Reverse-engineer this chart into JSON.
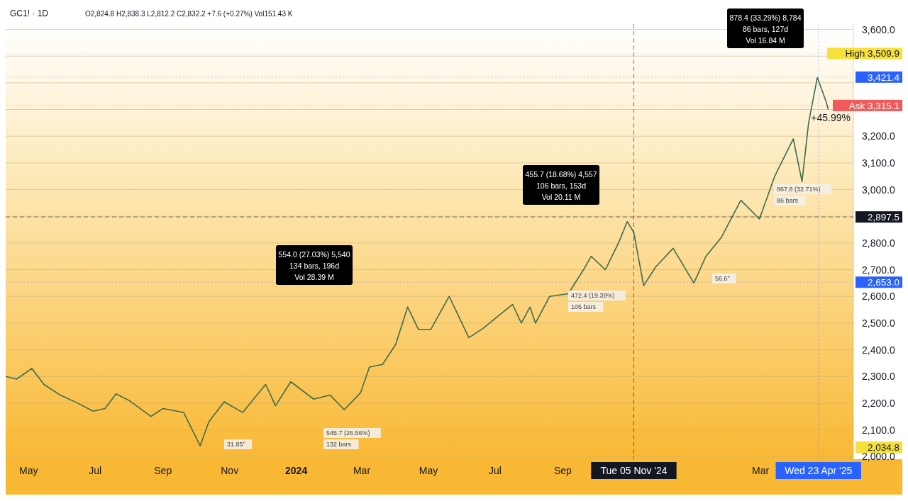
{
  "chart_data": {
    "type": "line",
    "title": "GC1! · 1D",
    "subtitle": "O2,824.8 H2,838.3 L2,812.2 C2,832.2 +7.6 (+0.27%) Vol151.43 K",
    "x": [
      "2023-04-10",
      "2023-04-20",
      "2023-05-04",
      "2023-05-15",
      "2023-05-30",
      "2023-06-15",
      "2023-06-29",
      "2023-07-10",
      "2023-07-20",
      "2023-08-01",
      "2023-08-21",
      "2023-09-01",
      "2023-09-20",
      "2023-10-05",
      "2023-10-13",
      "2023-10-27",
      "2023-11-13",
      "2023-12-04",
      "2023-12-13",
      "2023-12-27",
      "2024-01-17",
      "2024-02-01",
      "2024-02-14",
      "2024-02-29",
      "2024-03-08",
      "2024-03-20",
      "2024-04-01",
      "2024-04-12",
      "2024-04-22",
      "2024-05-03",
      "2024-05-20",
      "2024-06-07",
      "2024-06-20",
      "2024-07-05",
      "2024-07-17",
      "2024-07-25",
      "2024-08-02",
      "2024-08-07",
      "2024-08-20",
      "2024-09-06",
      "2024-09-20",
      "2024-09-27",
      "2024-10-10",
      "2024-10-22",
      "2024-10-30",
      "2024-11-05",
      "2024-11-14",
      "2024-11-25",
      "2024-12-11",
      "2024-12-30",
      "2025-01-10",
      "2025-01-24",
      "2025-02-11",
      "2025-02-28",
      "2025-03-14",
      "2025-03-31",
      "2025-04-08",
      "2025-04-14",
      "2025-04-22",
      "2025-04-30",
      "2025-05-02"
    ],
    "series": [
      {
        "color": "#3d6b4f",
        "values": [
          2300,
          2290,
          2330,
          2270,
          2230,
          2200,
          2170,
          2180,
          2235,
          2210,
          2150,
          2180,
          2165,
          2040,
          2130,
          2205,
          2165,
          2270,
          2190,
          2280,
          2215,
          2230,
          2175,
          2240,
          2335,
          2345,
          2420,
          2560,
          2475,
          2475,
          2600,
          2445,
          2480,
          2530,
          2570,
          2500,
          2560,
          2500,
          2600,
          2610,
          2700,
          2750,
          2700,
          2800,
          2880,
          2840,
          2640,
          2710,
          2780,
          2650,
          2750,
          2820,
          2960,
          2890,
          3050,
          3190,
          3030,
          3250,
          3420,
          3330,
          3300
        ]
      }
    ],
    "xlim": [
      "2023-04-10",
      "2025-05-25"
    ],
    "xticks": [
      {
        "value": "2023-05-01",
        "label": "May"
      },
      {
        "value": "2023-07-01",
        "label": "Jul"
      },
      {
        "value": "2023-09-01",
        "label": "Sep"
      },
      {
        "value": "2023-11-01",
        "label": "Nov"
      },
      {
        "value": "2024-01-01",
        "label": "2024"
      },
      {
        "value": "2024-03-01",
        "label": "Mar"
      },
      {
        "value": "2024-05-01",
        "label": "May"
      },
      {
        "value": "2024-07-01",
        "label": "Jul"
      },
      {
        "value": "2024-09-01",
        "label": "Sep"
      },
      {
        "value": "2025-03-01",
        "label": "Mar"
      }
    ],
    "ylim": [
      1990,
      3620
    ],
    "yticks": [
      {
        "value": 2000,
        "label": "2,000.0"
      },
      {
        "value": 2100,
        "label": "2,100.0"
      },
      {
        "value": 2200,
        "label": "2,200.0"
      },
      {
        "value": 2300,
        "label": "2,300.0"
      },
      {
        "value": 2400,
        "label": "2,400.0"
      },
      {
        "value": 2500,
        "label": "2,500.0"
      },
      {
        "value": 2600,
        "label": "2,600.0"
      },
      {
        "value": 2700,
        "label": "2,700.0"
      },
      {
        "value": 2800,
        "label": "2,800.0"
      },
      {
        "value": 2900,
        "label": null
      },
      {
        "value": 3000,
        "label": "3,000.0"
      },
      {
        "value": 3100,
        "label": "3,100.0"
      },
      {
        "value": 3200,
        "label": "3,200.0"
      },
      {
        "value": 3300,
        "label": null
      },
      {
        "value": 3400,
        "label": null
      },
      {
        "value": 3500,
        "label": null
      },
      {
        "value": 3600,
        "label": "3,600.0"
      }
    ],
    "grid": "y",
    "marker": "none",
    "ref_lines": [
      {
        "axis": "y",
        "value": 2897.5,
        "label": "2,897.5",
        "color": "#131722",
        "line_style": "dashed"
      },
      {
        "axis": "y",
        "value": 3509.9,
        "label": "High 3,509.9",
        "color": "#f7e03c"
      },
      {
        "axis": "y",
        "value": 3421.4,
        "label": "3,421.4",
        "color": "#2962ff"
      },
      {
        "axis": "y",
        "value": 3315.1,
        "label": "Ask 3,315.1",
        "color": "#f05a5a"
      },
      {
        "axis": "y",
        "value": 2653.0,
        "label": "2,653.0",
        "color": "#2962ff"
      },
      {
        "axis": "y",
        "value": 2034.8,
        "label": "2,034.8",
        "color": "#f7e03c"
      },
      {
        "axis": "x",
        "value": "2024-11-05",
        "label": "Tue 05 Nov '24",
        "color": "#131722",
        "line_style": "dashed"
      },
      {
        "axis": "x",
        "value": "2025-04-23",
        "label": "Wed 23 Apr '25",
        "color": "#2962ff"
      }
    ],
    "annotations": [
      "554.0 (27.03%) 5,540\n134 bars, 196d\nVol 28.39 M",
      "455.7 (18.68%) 4,557\n106 bars, 153d\nVol 20.11 M",
      "878.4 (33.29%) 8,784\n86 bars, 127d\nVol 16.84 M",
      "545.7 (26.56%)",
      "132 bars",
      "472.4 (19.39%)",
      "105 bars",
      "867.8 (32.71%)",
      "86 bars",
      "31.85°",
      "56.6°",
      "+45.99%"
    ]
  }
}
